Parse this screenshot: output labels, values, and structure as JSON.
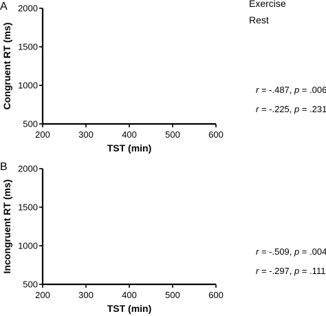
{
  "legend": [
    "Exercise",
    "Rest"
  ],
  "chart_data": [
    {
      "type": "scatter",
      "panel_label": "A",
      "xlabel": "TST (min)",
      "ylabel": "Congruent RT (ms)",
      "xlim": [
        200,
        600
      ],
      "ylim": [
        500,
        2000
      ],
      "x_ticks": [
        "200",
        "300",
        "400",
        "500",
        "600"
      ],
      "y_ticks": [
        "500",
        "1000",
        "1500",
        "2000"
      ],
      "series": [
        {
          "name": "Exercise",
          "points": []
        },
        {
          "name": "Rest",
          "points": []
        }
      ],
      "stats": [
        {
          "r_label": "r",
          "r_value": " = -.487, ",
          "p_label": "p",
          "p_value": " = .006"
        },
        {
          "r_label": "r",
          "r_value": " = -.225, ",
          "p_label": "p",
          "p_value": " = .231"
        }
      ]
    },
    {
      "type": "scatter",
      "panel_label": "B",
      "xlabel": "TST (min)",
      "ylabel": "Incongruent RT (ms)",
      "xlim": [
        200,
        600
      ],
      "ylim": [
        500,
        2000
      ],
      "x_ticks": [
        "200",
        "300",
        "400",
        "500",
        "600"
      ],
      "y_ticks": [
        "500",
        "1000",
        "1500",
        "2000"
      ],
      "series": [
        {
          "name": "Exercise",
          "points": []
        },
        {
          "name": "Rest",
          "points": []
        }
      ],
      "stats": [
        {
          "r_label": "r",
          "r_value": " = -.509, ",
          "p_label": "p",
          "p_value": " = .004"
        },
        {
          "r_label": "r",
          "r_value": " = -.297, ",
          "p_label": "p",
          "p_value": " = .111"
        }
      ]
    }
  ]
}
